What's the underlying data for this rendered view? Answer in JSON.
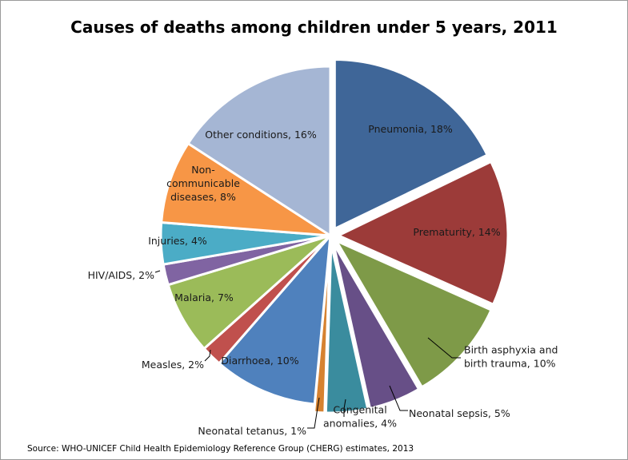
{
  "chart_data": {
    "type": "pie",
    "title": "Causes of deaths among children under 5 years, 2011",
    "source": "Source: WHO-UNICEF Child Health Epidemiology Reference Group (CHERG) estimates,  2013",
    "slices": [
      {
        "label": "Pneumonia, 18%",
        "value": 18,
        "color": "#3f6698"
      },
      {
        "label": "Prematurity, 14%",
        "value": 14,
        "color": "#9c3b39"
      },
      {
        "label": "Birth asphyxia and birth trauma, 10%",
        "value": 10,
        "color": "#7e9a48"
      },
      {
        "label": "Neonatal sepsis, 5%",
        "value": 5,
        "color": "#674f87"
      },
      {
        "label": "Congenital anomalies, 4%",
        "value": 4,
        "color": "#3a8c9e"
      },
      {
        "label": "Neonatal tetanus, 1%",
        "value": 1,
        "color": "#d68230"
      },
      {
        "label": "Diarrhoea, 10%",
        "value": 10,
        "color": "#4f81bd"
      },
      {
        "label": "Measles, 2%",
        "value": 2,
        "color": "#c0504d"
      },
      {
        "label": "Malaria, 7%",
        "value": 7,
        "color": "#9bbb59"
      },
      {
        "label": "HIV/AIDS, 2%",
        "value": 2,
        "color": "#8064a2"
      },
      {
        "label": "Injuries, 4%",
        "value": 4,
        "color": "#4bacc6"
      },
      {
        "label": "Non-communicable diseases, 8%",
        "value": 8,
        "color": "#f79646"
      },
      {
        "label": "Other conditions, 16%",
        "value": 16,
        "color": "#a5b6d4"
      }
    ]
  }
}
